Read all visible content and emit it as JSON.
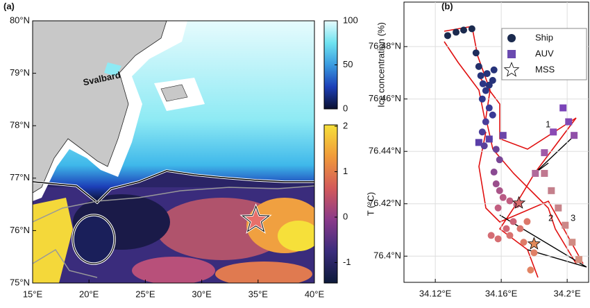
{
  "chart_data": [
    {
      "type": "map",
      "label": "(a)",
      "xlim": [
        15,
        40
      ],
      "ylim": [
        75,
        80
      ],
      "xticks": [
        {
          "value": 15,
          "label": "15°E"
        },
        {
          "value": 20,
          "label": "20°E"
        },
        {
          "value": 25,
          "label": "25°E"
        },
        {
          "value": 30,
          "label": "30°E"
        },
        {
          "value": 35,
          "label": "35°E"
        },
        {
          "value": 40,
          "label": "40°E"
        }
      ],
      "yticks": [
        {
          "value": 75,
          "label": "75°N"
        },
        {
          "value": 76,
          "label": "76°N"
        },
        {
          "value": 77,
          "label": "77°N"
        },
        {
          "value": 78,
          "label": "78°N"
        },
        {
          "value": 79,
          "label": "79°N"
        },
        {
          "value": 80,
          "label": "80°N"
        }
      ],
      "annotations": [
        "Svalbard"
      ],
      "station": {
        "x": 34.8,
        "y": 76.2,
        "color": "#e8706a"
      },
      "colorbars": [
        {
          "label": "Ice concentration (%)",
          "lim": [
            0,
            100
          ],
          "ticks": [
            0,
            50,
            100
          ],
          "colors": [
            "#0b1030",
            "#1c3fb8",
            "#3a9be0",
            "#6fe3f0",
            "#e6fbfd"
          ]
        },
        {
          "label": "T (°C)",
          "lim": [
            -1.45,
            2.03
          ],
          "ticks": [
            -1,
            0,
            1,
            2
          ],
          "colors": [
            "#0d1a3a",
            "#3a2c7c",
            "#8a3a8a",
            "#d35a5a",
            "#f09a3a",
            "#f6e03a"
          ]
        }
      ]
    },
    {
      "type": "scatter",
      "label": "(b)",
      "xlim": [
        34.101,
        34.213
      ],
      "ylim": [
        76.39,
        76.497
      ],
      "grid": true,
      "legend": "upper right",
      "xticks": [
        {
          "value": 34.12,
          "label": "34.12°E"
        },
        {
          "value": 34.16,
          "label": "34.16°E"
        },
        {
          "value": 34.2,
          "label": "34.2°E"
        }
      ],
      "yticks": [
        {
          "value": 76.4,
          "label": "76.4°N"
        },
        {
          "value": 76.42,
          "label": "76.42°N"
        },
        {
          "value": 76.44,
          "label": "76.44°N"
        },
        {
          "value": 76.46,
          "label": "76.46°N"
        },
        {
          "value": 76.48,
          "label": "76.48°N"
        }
      ],
      "annotations": [
        "1",
        "2",
        "3"
      ],
      "series": [
        {
          "name": "Ship",
          "marker": "circle",
          "color": "#1b2a4e",
          "x": [
            34.1275,
            34.1326,
            34.1372,
            34.1422,
            34.1447,
            34.1464,
            34.1527,
            34.1548,
            34.1514,
            34.1556,
            34.1476,
            34.1489,
            34.1506,
            34.1485,
            34.1527,
            34.1548,
            34.1506,
            34.1485,
            34.1497,
            34.1527,
            34.1569,
            34.159,
            34.1556,
            34.1569,
            34.159,
            34.1611,
            34.1652,
            34.1694,
            34.1673,
            34.1631,
            34.1581,
            34.1539,
            34.1581,
            34.1652,
            34.1715,
            34.1757,
            34.1736,
            34.1799,
            34.1778
          ],
          "values": [
            76.4842,
            76.4855,
            76.4863,
            76.4868,
            76.4776,
            76.4724,
            76.4653,
            76.4671,
            76.4697,
            76.4711,
            76.4689,
            76.4658,
            76.4632,
            76.46,
            76.4566,
            76.4539,
            76.4513,
            76.4474,
            76.4421,
            76.4447,
            76.4408,
            76.4368,
            76.4321,
            76.4276,
            76.425,
            76.4224,
            76.4211,
            76.4197,
            76.4132,
            76.4105,
            76.4184,
            76.4079,
            76.4066,
            76.4079,
            76.4105,
            76.4132,
            76.4053,
            76.4013,
            76.3947
          ],
          "colors": [
            "#1b2a4e",
            "#1b2a4e",
            "#1b2a4e",
            "#1b2a4e",
            "#1f2d5c",
            "#24306a",
            "#26337a",
            "#26337a",
            "#26337a",
            "#26337a",
            "#26337a",
            "#2b3585",
            "#2b3585",
            "#2f378c",
            "#3a3a96",
            "#3a3a96",
            "#4a3d9a",
            "#4a3d9a",
            "#5a3f9a",
            "#5a3f9a",
            "#6a4298",
            "#7a4696",
            "#8a4a92",
            "#9a4e8c",
            "#aa5488",
            "#b85a84",
            "#c25e80",
            "#c8607c",
            "#cc6478",
            "#d06876",
            "#c25e80",
            "#d46c74",
            "#d66e72",
            "#d87270",
            "#da746c",
            "#dc786a",
            "#de7c68",
            "#e08066",
            "#e28464"
          ]
        },
        {
          "name": "AUV",
          "marker": "square",
          "color": "#6a4ab0",
          "x": [
            34.1807,
            34.1862,
            34.1916,
            34.1975,
            34.2009,
            34.2042,
            34.1862,
            34.1904,
            34.1946,
            34.1988,
            34.203,
            34.2071,
            34.1464,
            34.1527,
            34.1611
          ],
          "values": [
            76.4316,
            76.4395,
            76.4474,
            76.4566,
            76.4513,
            76.4461,
            76.4316,
            76.425,
            76.4184,
            76.4118,
            76.4053,
            76.3987,
            76.4434,
            76.4447,
            76.4461
          ],
          "colors": [
            "#b06a9a",
            "#a05aa8",
            "#8a4ab4",
            "#7a44b8",
            "#8048b4",
            "#9050a8",
            "#c07890",
            "#c4808c",
            "#c8848a",
            "#cc8888",
            "#d08c84",
            "#d49080",
            "#5a3fa8",
            "#5a3fa8",
            "#6a44a8"
          ]
        },
        {
          "name": "MSS",
          "marker": "star",
          "color": "#ffffff",
          "x": [
            34.1707,
            34.1799
          ],
          "values": [
            76.4203,
            76.4047
          ],
          "colors": [
            "#d86a6a",
            "#e08a5a"
          ]
        }
      ]
    }
  ]
}
